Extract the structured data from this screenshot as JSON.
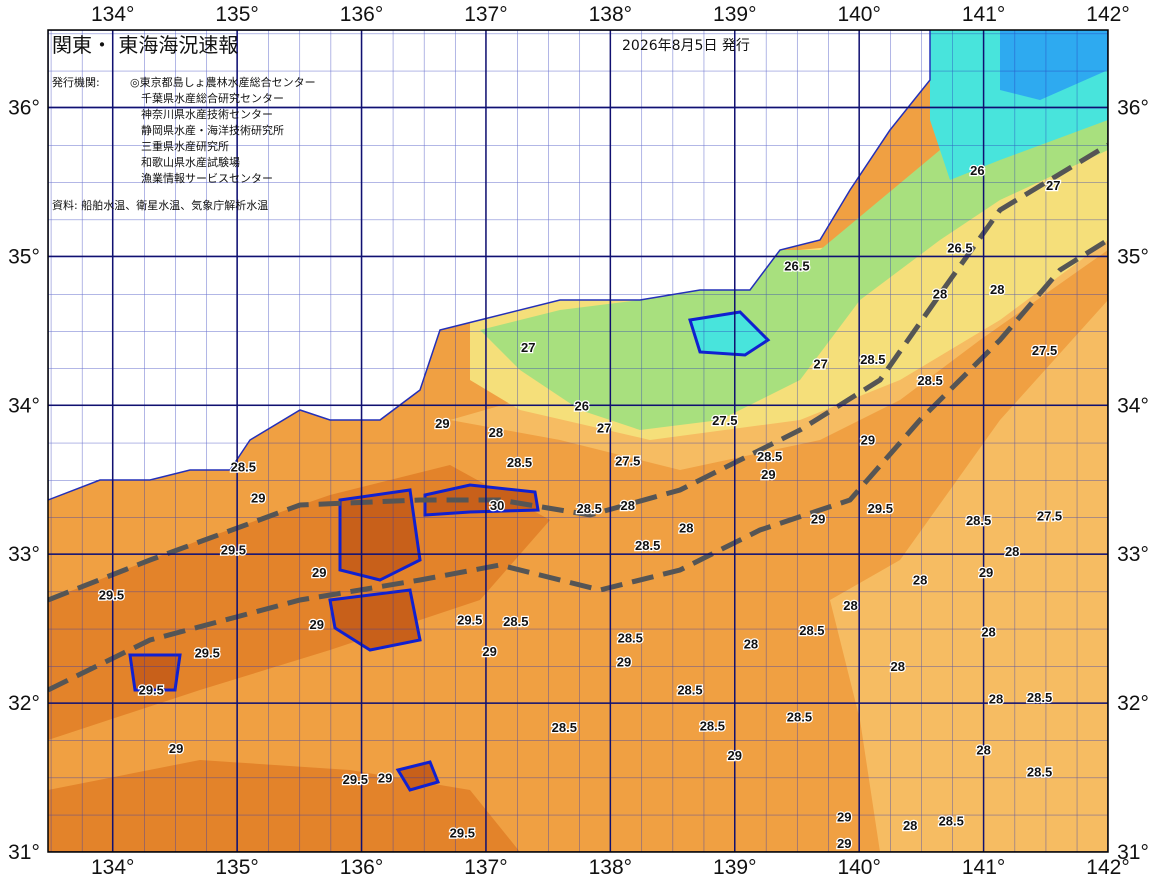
{
  "header": {
    "title": "関東・ 東海海況速報",
    "date": "2026年8月5日 発行"
  },
  "agencies": {
    "label": "発行機関:",
    "items": [
      "◎東京都島しょ農林水産総合センター",
      "千葉県水産総合研究センター",
      "神奈川県水産技術センター",
      "静岡県水産・海洋技術研究所",
      "三重県水産研究所",
      "和歌山県水産試験場",
      "漁業情報サービスセンター"
    ]
  },
  "source": "資料: 船舶水温、衛星水温、気象庁解析水温",
  "map": {
    "xlim": [
      133.48,
      142
    ],
    "ylim": [
      31,
      36.52
    ],
    "xticks": [
      {
        "value": 134,
        "label": "134°"
      },
      {
        "value": 135,
        "label": "135°"
      },
      {
        "value": 136,
        "label": "136°"
      },
      {
        "value": 137,
        "label": "137°"
      },
      {
        "value": 138,
        "label": "138°"
      },
      {
        "value": 139,
        "label": "139°"
      },
      {
        "value": 140,
        "label": "140°"
      },
      {
        "value": 141,
        "label": "141°"
      },
      {
        "value": 142,
        "label": "142°"
      }
    ],
    "yticks": [
      {
        "value": 31,
        "label": "31°"
      },
      {
        "value": 32,
        "label": "32°"
      },
      {
        "value": 33,
        "label": "33°"
      },
      {
        "value": 34,
        "label": "34°"
      },
      {
        "value": 35,
        "label": "35°"
      },
      {
        "value": 36,
        "label": "36°"
      }
    ],
    "contour_labels": [
      {
        "lon": 137.08,
        "lat": 33.82,
        "value": 28
      },
      {
        "lon": 136.65,
        "lat": 33.88,
        "value": 29
      },
      {
        "lon": 137.27,
        "lat": 33.62,
        "value": 28.5
      },
      {
        "lon": 135.05,
        "lat": 33.59,
        "value": 28.5
      },
      {
        "lon": 135.17,
        "lat": 33.38,
        "value": 29
      },
      {
        "lon": 134.97,
        "lat": 33.03,
        "value": 29.5
      },
      {
        "lon": 133.99,
        "lat": 32.73,
        "value": 29.5
      },
      {
        "lon": 135.66,
        "lat": 32.88,
        "value": 29
      },
      {
        "lon": 137.09,
        "lat": 33.33,
        "value": 30
      },
      {
        "lon": 137.83,
        "lat": 33.31,
        "value": 28.5
      },
      {
        "lon": 138.14,
        "lat": 33.33,
        "value": 28
      },
      {
        "lon": 138.61,
        "lat": 33.18,
        "value": 28
      },
      {
        "lon": 137.34,
        "lat": 34.39,
        "value": 27
      },
      {
        "lon": 137.95,
        "lat": 33.85,
        "value": 27
      },
      {
        "lon": 137.77,
        "lat": 34.0,
        "value": 26
      },
      {
        "lon": 139.69,
        "lat": 34.28,
        "value": 27
      },
      {
        "lon": 139.5,
        "lat": 34.94,
        "value": 26.5
      },
      {
        "lon": 140.65,
        "lat": 34.75,
        "value": 28
      },
      {
        "lon": 141.11,
        "lat": 34.78,
        "value": 28
      },
      {
        "lon": 141.49,
        "lat": 34.37,
        "value": 27.5
      },
      {
        "lon": 140.95,
        "lat": 35.58,
        "value": 26
      },
      {
        "lon": 140.81,
        "lat": 35.06,
        "value": 26.5
      },
      {
        "lon": 141.56,
        "lat": 35.48,
        "value": 27
      },
      {
        "lon": 140.11,
        "lat": 34.31,
        "value": 28.5
      },
      {
        "lon": 140.57,
        "lat": 34.17,
        "value": 28.5
      },
      {
        "lon": 140.96,
        "lat": 33.23,
        "value": 28.5
      },
      {
        "lon": 141.53,
        "lat": 33.26,
        "value": 27.5
      },
      {
        "lon": 141.23,
        "lat": 33.02,
        "value": 28
      },
      {
        "lon": 140.49,
        "lat": 32.83,
        "value": 28
      },
      {
        "lon": 141.02,
        "lat": 32.88,
        "value": 29
      },
      {
        "lon": 139.93,
        "lat": 32.66,
        "value": 28
      },
      {
        "lon": 139.62,
        "lat": 32.49,
        "value": 28.5
      },
      {
        "lon": 139.13,
        "lat": 32.4,
        "value": 28
      },
      {
        "lon": 141.04,
        "lat": 32.48,
        "value": 28
      },
      {
        "lon": 140.31,
        "lat": 32.25,
        "value": 28
      },
      {
        "lon": 141.1,
        "lat": 32.03,
        "value": 28
      },
      {
        "lon": 141.45,
        "lat": 32.04,
        "value": 28.5
      },
      {
        "lon": 141.0,
        "lat": 31.69,
        "value": 28
      },
      {
        "lon": 141.45,
        "lat": 31.54,
        "value": 28.5
      },
      {
        "lon": 139.52,
        "lat": 31.91,
        "value": 28.5
      },
      {
        "lon": 138.82,
        "lat": 31.85,
        "value": 28.5
      },
      {
        "lon": 137.63,
        "lat": 31.84,
        "value": 28.5
      },
      {
        "lon": 139.0,
        "lat": 31.65,
        "value": 29
      },
      {
        "lon": 139.88,
        "lat": 31.24,
        "value": 29
      },
      {
        "lon": 139.88,
        "lat": 31.06,
        "value": 29
      },
      {
        "lon": 140.74,
        "lat": 31.21,
        "value": 28.5
      },
      {
        "lon": 140.41,
        "lat": 31.18,
        "value": 28
      },
      {
        "lon": 136.81,
        "lat": 31.13,
        "value": 29.5
      },
      {
        "lon": 135.95,
        "lat": 31.49,
        "value": 29.5
      },
      {
        "lon": 136.19,
        "lat": 31.5,
        "value": 29
      },
      {
        "lon": 134.51,
        "lat": 31.7,
        "value": 29
      },
      {
        "lon": 134.31,
        "lat": 32.09,
        "value": 29.5
      },
      {
        "lon": 134.76,
        "lat": 32.34,
        "value": 29.5
      },
      {
        "lon": 137.03,
        "lat": 32.35,
        "value": 29
      },
      {
        "lon": 138.16,
        "lat": 32.44,
        "value": 28.5
      },
      {
        "lon": 138.11,
        "lat": 32.28,
        "value": 29
      },
      {
        "lon": 138.64,
        "lat": 32.09,
        "value": 28.5
      },
      {
        "lon": 137.24,
        "lat": 32.55,
        "value": 28.5
      },
      {
        "lon": 136.87,
        "lat": 32.56,
        "value": 29.5
      },
      {
        "lon": 135.64,
        "lat": 32.53,
        "value": 29
      },
      {
        "lon": 138.92,
        "lat": 33.9,
        "value": 27.5
      },
      {
        "lon": 138.14,
        "lat": 33.63,
        "value": 27.5
      },
      {
        "lon": 139.28,
        "lat": 33.66,
        "value": 28.5
      },
      {
        "lon": 140.07,
        "lat": 33.77,
        "value": 29
      },
      {
        "lon": 140.17,
        "lat": 33.31,
        "value": 29.5
      },
      {
        "lon": 139.67,
        "lat": 33.24,
        "value": 29
      },
      {
        "lon": 139.27,
        "lat": 33.54,
        "value": 29
      },
      {
        "lon": 138.3,
        "lat": 33.06,
        "value": 28.5
      }
    ]
  }
}
